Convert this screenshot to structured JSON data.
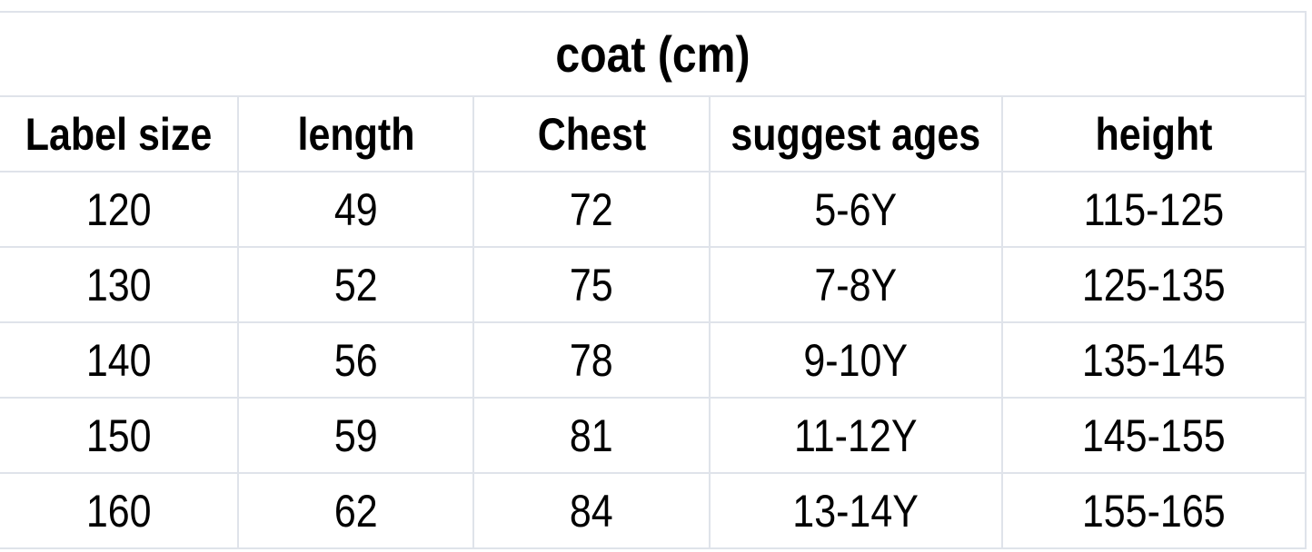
{
  "title": "coat (cm)",
  "table": {
    "header": [
      "Label size",
      "length",
      "Chest",
      "suggest ages",
      "height"
    ],
    "rows": [
      [
        120,
        49,
        72,
        "5-6Y",
        "115-125"
      ],
      [
        130,
        52,
        75,
        "7-8Y",
        "125-135"
      ],
      [
        140,
        56,
        78,
        "9-10Y",
        "135-145"
      ],
      [
        150,
        59,
        81,
        "11-12Y",
        "145-155"
      ],
      [
        160,
        62,
        84,
        "13-14Y",
        "155-165"
      ]
    ]
  }
}
